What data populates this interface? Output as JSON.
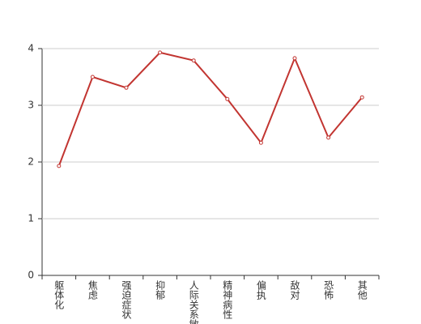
{
  "chart_data": {
    "type": "line",
    "categories": [
      "躯体化",
      "焦虑",
      "强迫症状",
      "抑郁",
      "人际关系敏感",
      "精神病性",
      "偏执",
      "敌对",
      "恐怖",
      "其他"
    ],
    "values": [
      1.93,
      3.5,
      3.31,
      3.93,
      3.79,
      3.11,
      2.34,
      3.83,
      2.43,
      3.14
    ],
    "color": "#c23531",
    "ylim": [
      0,
      4
    ],
    "yticks": [
      0,
      1,
      2,
      3,
      4
    ],
    "grid": true
  }
}
